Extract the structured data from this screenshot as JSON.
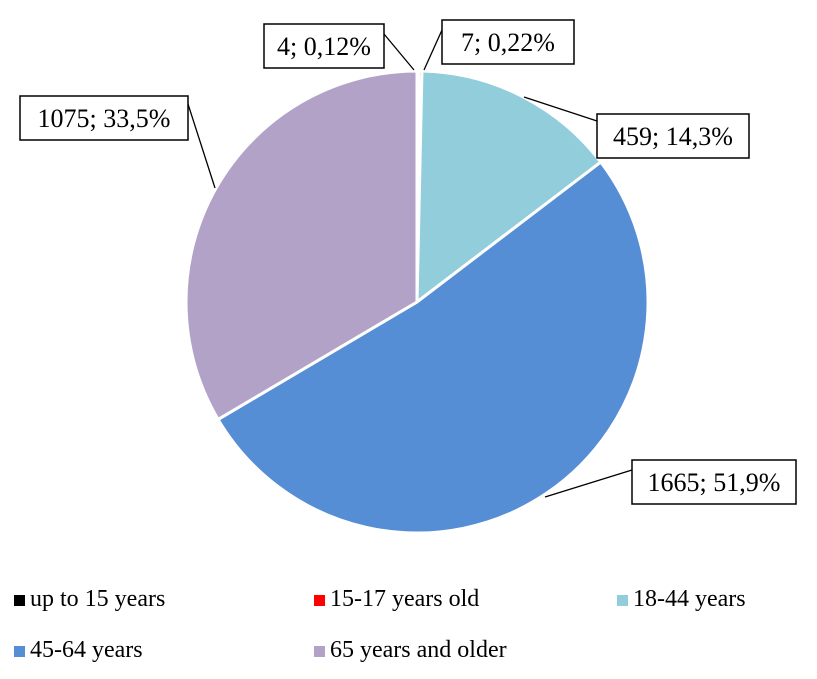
{
  "chart_data": {
    "type": "pie",
    "series": [
      {
        "values": [
          4,
          7,
          459,
          1665,
          1075
        ]
      }
    ],
    "categories": [
      "up to 15 years",
      "15-17 years old",
      "18-44 years",
      "45-64 years",
      "65 years and older"
    ],
    "data_labels": [
      "4; 0,12%",
      "7; 0,22%",
      "459; 14,3%",
      "1665; 51,9%",
      "1075; 33,5%"
    ],
    "colors": [
      "#000000",
      "#ff0000",
      "#92cddc",
      "#558ed5",
      "#b3a2c7"
    ],
    "start_angle_deg": 0,
    "direction": "clockwise",
    "legend_position": "bottom"
  }
}
